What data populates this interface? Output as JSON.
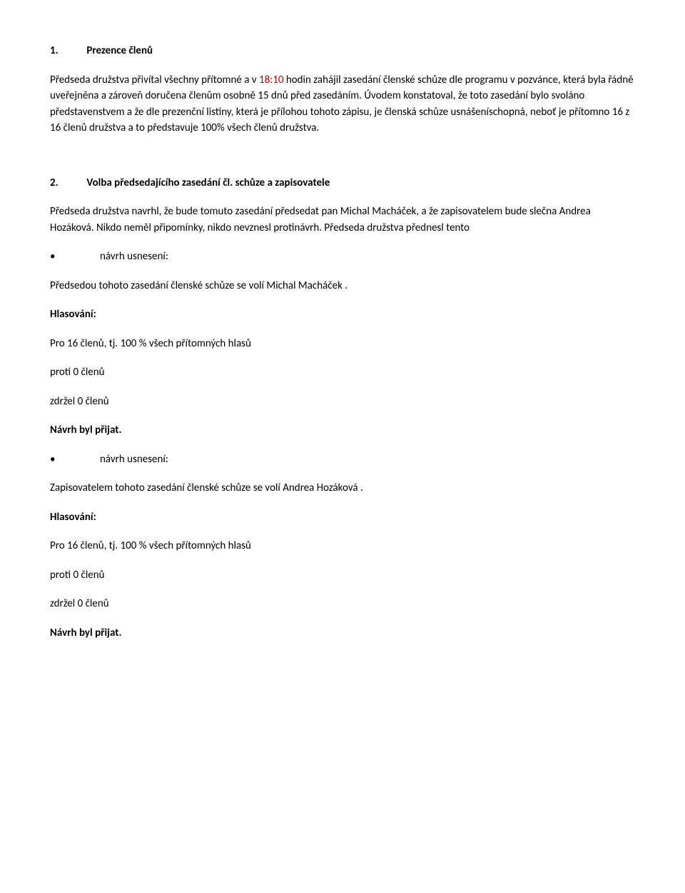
{
  "section1": {
    "num": "1.",
    "title": "Prezence členů",
    "p1_a": "Předseda družstva přivítal všechny přítomné a v ",
    "p1_time": "18:10",
    "p1_b": " hodin zahájil zasedání členské schůze dle programu v pozvánce, která byla řádně uveřejněna a zároveň doručena členům osobně 15 dnů před zasedáním.  Úvodem konstatoval, že toto zasedání bylo svoláno představenstvem a že dle prezenční listiny, která je přílohou tohoto zápisu, je členská schůze usnášeníschopná, neboť je přítomno 16 z 16 členů družstva a to představuje 100% všech členů družstva."
  },
  "section2": {
    "num": "2.",
    "title": "Volba předsedajícího zasedání čl. schůze a zapisovatele",
    "p1": "Předseda družstva navrhl, že bude tomuto zasedání předsedat pan Michal Macháček, a že zapisovatelem bude slečna Andrea Hozáková. Nikdo neměl připomínky, nikdo nevznesl protinávrh. Předseda družstva přednesl tento",
    "bullet1": "návrh usnesení:",
    "resolution1": "Předsedou tohoto zasedání členské schůze se volí Michal Macháček .",
    "hlasovani": "Hlasování:",
    "pro": "Pro 16  členů, tj.  100 %  všech přítomných hlasů",
    "proti": "proti 0 členů",
    "zdrzel": "zdržel 0 členů",
    "prijat": "Návrh byl přijat.",
    "bullet2": "návrh usnesení:",
    "resolution2": "Zapisovatelem  tohoto zasedání členské schůze se volí Andrea Hozáková .",
    "hlasovani2": "Hlasování:",
    "pro2": "Pro 16  členů, tj.  100 %  všech přítomných hlasů",
    "proti2": "proti 0 členů",
    "zdrzel2": "zdržel 0 členů",
    "prijat2": "Návrh byl přijat."
  }
}
